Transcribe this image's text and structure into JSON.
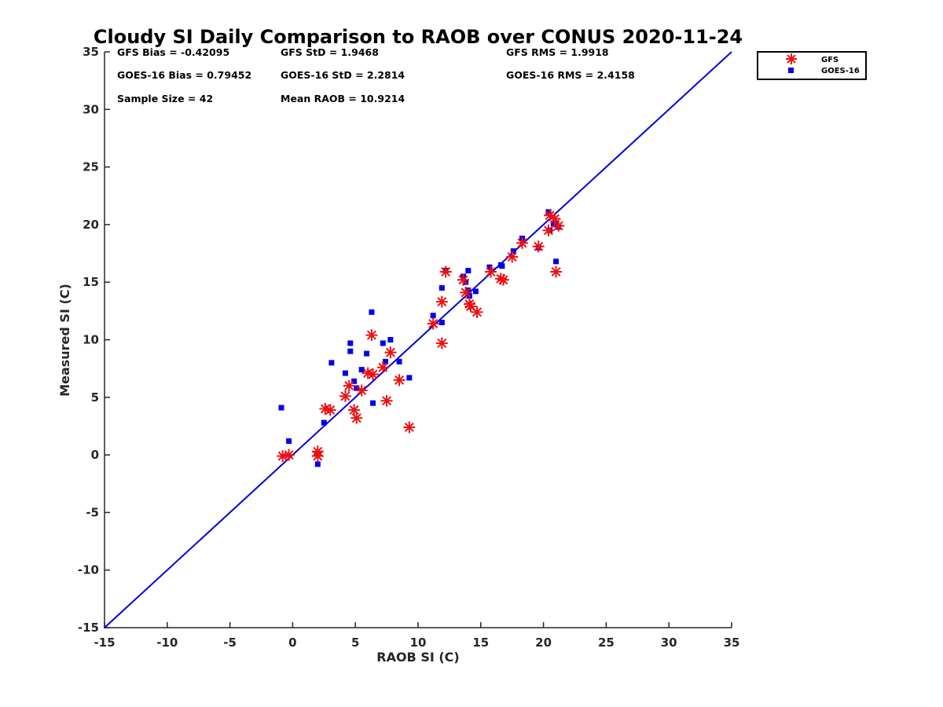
{
  "chart_data": {
    "type": "scatter",
    "title": "Cloudy SI Daily Comparison to RAOB over CONUS 2020-11-24",
    "xlabel": "RAOB SI (C)",
    "ylabel": "Measured SI (C)",
    "xlim": [
      -15,
      35
    ],
    "ylim": [
      -15,
      35
    ],
    "xticks": [
      "-15",
      "-10",
      "-5",
      "0",
      "5",
      "10",
      "15",
      "20",
      "25",
      "30",
      "35"
    ],
    "yticks": [
      "-15",
      "-10",
      "-5",
      "0",
      "5",
      "10",
      "15",
      "20",
      "25",
      "30",
      "35"
    ],
    "legend_position": "outside top-right",
    "grid": false,
    "stats": [
      {
        "label": "GFS Bias = -0.42095"
      },
      {
        "label": "GFS StD = 1.9468"
      },
      {
        "label": "GFS RMS = 1.9918"
      },
      {
        "label": "GOES-16 Bias = 0.79452"
      },
      {
        "label": "GOES-16 StD = 2.2814"
      },
      {
        "label": "GOES-16 RMS = 2.4158"
      },
      {
        "label": "Sample Size = 42"
      },
      {
        "label": "Mean RAOB = 10.9214"
      }
    ],
    "reference_line": {
      "type": "one-to-one",
      "from": [
        -15,
        -15
      ],
      "to": [
        35,
        35
      ],
      "color": "#0000dd"
    },
    "series": [
      {
        "name": "GFS",
        "marker": "asterisk",
        "color": "#ee1111",
        "points": [
          [
            -0.8,
            -0.1
          ],
          [
            -0.3,
            0.0
          ],
          [
            2.0,
            0.3
          ],
          [
            2.0,
            -0.1
          ],
          [
            2.6,
            4.0
          ],
          [
            3.0,
            3.9
          ],
          [
            4.2,
            5.1
          ],
          [
            4.5,
            6.0
          ],
          [
            4.9,
            3.9
          ],
          [
            5.1,
            3.2
          ],
          [
            5.5,
            5.6
          ],
          [
            6.0,
            7.1
          ],
          [
            6.3,
            10.4
          ],
          [
            6.4,
            7.0
          ],
          [
            7.2,
            7.6
          ],
          [
            7.5,
            4.7
          ],
          [
            7.8,
            8.9
          ],
          [
            8.5,
            6.5
          ],
          [
            9.3,
            2.4
          ],
          [
            11.2,
            11.4
          ],
          [
            11.9,
            13.3
          ],
          [
            11.9,
            9.7
          ],
          [
            12.2,
            15.9
          ],
          [
            13.6,
            15.2
          ],
          [
            13.8,
            14.1
          ],
          [
            14.1,
            13.1
          ],
          [
            14.2,
            12.9
          ],
          [
            14.7,
            12.4
          ],
          [
            15.8,
            15.9
          ],
          [
            16.6,
            15.3
          ],
          [
            16.8,
            15.2
          ],
          [
            17.5,
            17.2
          ],
          [
            18.3,
            18.4
          ],
          [
            19.6,
            18.1
          ],
          [
            20.4,
            19.5
          ],
          [
            20.5,
            20.8
          ],
          [
            20.9,
            20.5
          ],
          [
            21.0,
            15.9
          ],
          [
            21.2,
            19.9
          ]
        ]
      },
      {
        "name": "GOES-16",
        "marker": "square",
        "color": "#0000ee",
        "points": [
          [
            -0.9,
            4.1
          ],
          [
            -0.3,
            1.2
          ],
          [
            2.0,
            0.1
          ],
          [
            2.0,
            -0.8
          ],
          [
            2.5,
            2.8
          ],
          [
            3.1,
            8.0
          ],
          [
            4.2,
            7.1
          ],
          [
            4.6,
            9.7
          ],
          [
            4.6,
            9.0
          ],
          [
            4.9,
            6.4
          ],
          [
            5.1,
            5.8
          ],
          [
            5.5,
            7.4
          ],
          [
            5.9,
            8.8
          ],
          [
            6.3,
            12.4
          ],
          [
            6.4,
            4.5
          ],
          [
            7.2,
            9.7
          ],
          [
            7.4,
            8.1
          ],
          [
            7.8,
            10.0
          ],
          [
            8.5,
            8.1
          ],
          [
            9.3,
            6.7
          ],
          [
            11.2,
            12.1
          ],
          [
            11.9,
            14.5
          ],
          [
            11.9,
            11.5
          ],
          [
            12.2,
            16.0
          ],
          [
            13.6,
            15.5
          ],
          [
            13.8,
            15.0
          ],
          [
            14.0,
            16.0
          ],
          [
            14.0,
            14.3
          ],
          [
            14.1,
            13.8
          ],
          [
            14.6,
            14.2
          ],
          [
            15.7,
            16.3
          ],
          [
            16.6,
            16.5
          ],
          [
            16.7,
            16.4
          ],
          [
            17.6,
            17.7
          ],
          [
            18.3,
            18.8
          ],
          [
            19.6,
            18.0
          ],
          [
            20.4,
            21.1
          ],
          [
            20.5,
            19.5
          ],
          [
            20.8,
            20.1
          ],
          [
            21.0,
            16.8
          ],
          [
            21.0,
            20.0
          ],
          [
            21.2,
            19.8
          ]
        ]
      }
    ]
  }
}
